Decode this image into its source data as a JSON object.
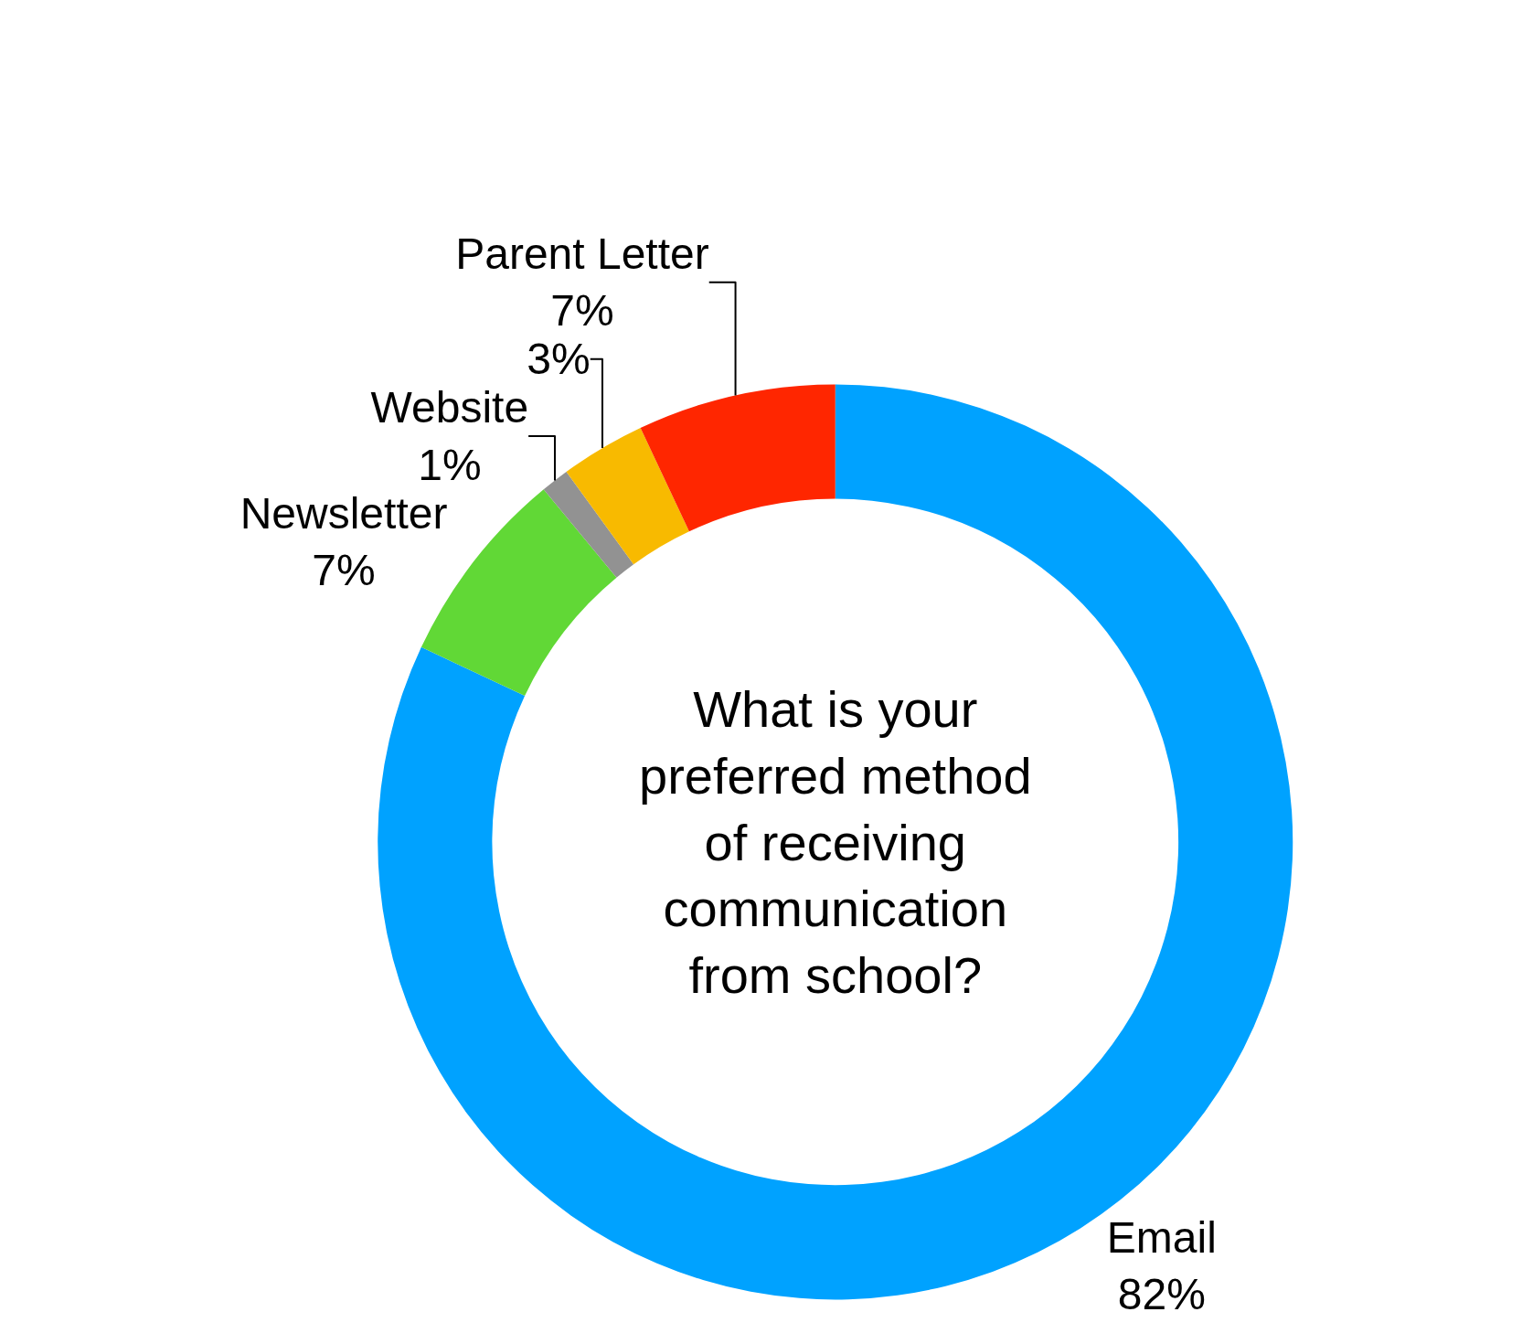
{
  "chart_data": {
    "type": "donut",
    "title": "What is your preferred method of receiving communication from school?",
    "categories": [
      "Email",
      "Newsletter",
      "Website",
      null,
      "Parent Letter"
    ],
    "values": [
      82,
      7,
      1,
      3,
      7
    ],
    "value_labels": [
      "82%",
      "7%",
      "1%",
      "3%",
      "7%"
    ],
    "colors": [
      "#00a2ff",
      "#61d836",
      "#929292",
      "#f8ba00",
      "#ff2600"
    ],
    "legend": false
  }
}
